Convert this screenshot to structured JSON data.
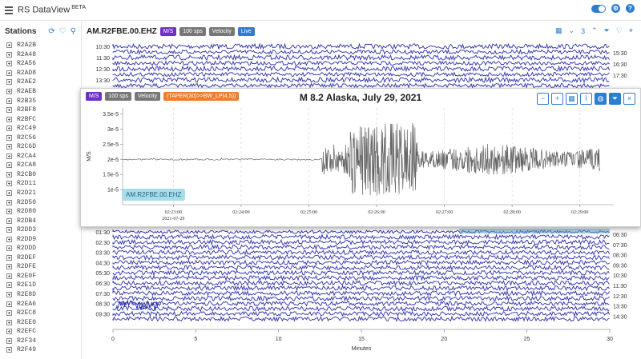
{
  "app": {
    "title": "RS DataView",
    "badge": "BETA"
  },
  "sidebar": {
    "title": "Stations",
    "stations": [
      "R2A2B",
      "R2A48",
      "R2A56",
      "R2AD8",
      "R2AE2",
      "R2AEB",
      "R2B35",
      "R2BF8",
      "R2BFC",
      "R2C49",
      "R2C56",
      "R2C6D",
      "R2CA4",
      "R2CA8",
      "R2CB0",
      "R2D11",
      "R2D21",
      "R2D50",
      "R2D80",
      "R2DB4",
      "R2DD3",
      "R2DD9",
      "R2DDD",
      "R2DEF",
      "R2DFE",
      "R2E0F",
      "R2E1D",
      "R2E8D",
      "R2EA6",
      "R2EC8",
      "R2EE0",
      "R2EFC",
      "R2F34",
      "R2F49"
    ]
  },
  "main": {
    "station": "AM.R2FBE.00.EHZ",
    "chips": {
      "units": "M/S",
      "rate": "100 sps",
      "type": "Velocity",
      "live": "Live"
    },
    "page_count": "3"
  },
  "helicorder": {
    "left_times_top": [
      "10:30",
      "11:30",
      "12:30",
      "13:30"
    ],
    "right_times_top": [
      "15:30",
      "16:30",
      "17:30"
    ],
    "left_times_bottom": [
      "01:30",
      "02:30",
      "03:30",
      "04:30",
      "05:30",
      "06:30",
      "07:30",
      "08:30",
      "09:30"
    ],
    "right_times_bottom": [
      "06:30",
      "07:30",
      "08:30",
      "09:30",
      "10:30",
      "11:30",
      "12:30",
      "13:30",
      "14:30"
    ],
    "x_ticks": [
      "0",
      "5",
      "10",
      "15",
      "20",
      "25",
      "30"
    ],
    "x_label": "Minutes",
    "trace_color": "#2b2fa8"
  },
  "popup": {
    "title": "M 8.2 Alaska, July 29, 2021",
    "chips": {
      "units": "M/S",
      "rate": "100 sps",
      "type": "Velocity",
      "filter": "(TAPER(30)>>BW_LP(4,5))"
    },
    "station_label": "AM.R2FBE.00.EHZ",
    "tools": [
      "zoom-out",
      "zoom-in",
      "grid",
      "chart",
      "globe",
      "filter",
      "close"
    ]
  },
  "chart_data": {
    "type": "line",
    "title": "M 8.2 Alaska, July 29, 2021",
    "xlabel": "",
    "ylabel": "M/S",
    "y_ticks": [
      "1e-5",
      "1.5e-5",
      "2e-5",
      "2.5e-5",
      "3e-5",
      "3.5e-5"
    ],
    "ylim": [
      5e-06,
      3.7e-05
    ],
    "x_ticks": [
      "02:23:00",
      "02:24:00",
      "02:25:00",
      "02:26:00",
      "02:27:00",
      "02:28:00",
      "02:29:00"
    ],
    "x_date_label": "2021-07-29",
    "xlim_minutes": [
      -0.75,
      6.5
    ],
    "series": [
      {
        "baseline": 2e-05,
        "segments": [
          {
            "t_start": -0.75,
            "t_end": 2.2,
            "amplitude": 3e-07
          },
          {
            "t_start": 2.2,
            "t_end": 2.6,
            "amplitude": 5e-06
          },
          {
            "t_start": 2.6,
            "t_end": 3.6,
            "amplitude": 1.2e-05
          },
          {
            "t_start": 3.6,
            "t_end": 6.3,
            "amplitude": 4e-06
          }
        ]
      }
    ]
  }
}
